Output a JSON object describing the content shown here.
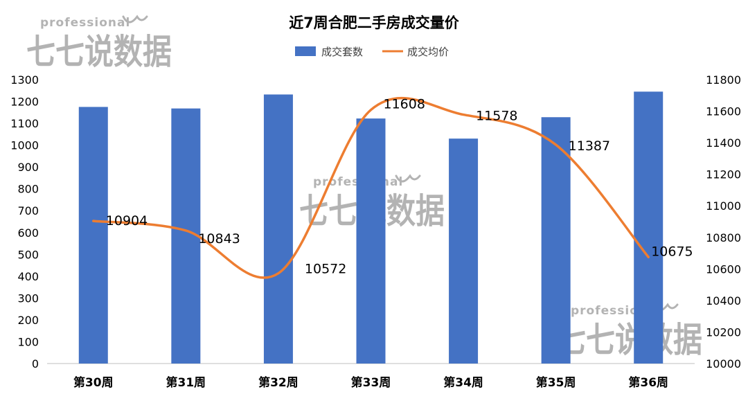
{
  "chart_data": {
    "type": "bar",
    "title": "近7周合肥二手房成交量价",
    "categories": [
      "第30周",
      "第31周",
      "第32周",
      "第33周",
      "第34周",
      "第35周",
      "第36周"
    ],
    "series": [
      {
        "name": "成交套数",
        "type": "bar",
        "axis": "left",
        "color": "#4472C4",
        "values": [
          1175,
          1168,
          1232,
          1122,
          1030,
          1128,
          1245
        ]
      },
      {
        "name": "成交均价",
        "type": "line",
        "axis": "right",
        "smooth": true,
        "color": "#ED7D31",
        "values": [
          10904,
          10843,
          10572,
          11608,
          11578,
          11387,
          10675
        ],
        "labels": [
          "10904",
          "10843",
          "10572",
          "11608",
          "11578",
          "11387",
          "10675"
        ]
      }
    ],
    "y_left": {
      "range": [
        0,
        1300
      ],
      "ticks": [
        "0",
        "100",
        "200",
        "300",
        "400",
        "500",
        "600",
        "700",
        "800",
        "900",
        "1000",
        "1100",
        "1200",
        "1300"
      ]
    },
    "y_right": {
      "range": [
        10000,
        11800
      ],
      "ticks": [
        "10000",
        "10200",
        "10400",
        "10600",
        "10800",
        "11000",
        "11200",
        "11400",
        "11600",
        "11800"
      ]
    },
    "legend": "top-center",
    "grid": false
  },
  "watermark": {
    "top": "professional",
    "bottom": "七七说数据",
    "count": 3,
    "color": "#9a9a9a"
  }
}
